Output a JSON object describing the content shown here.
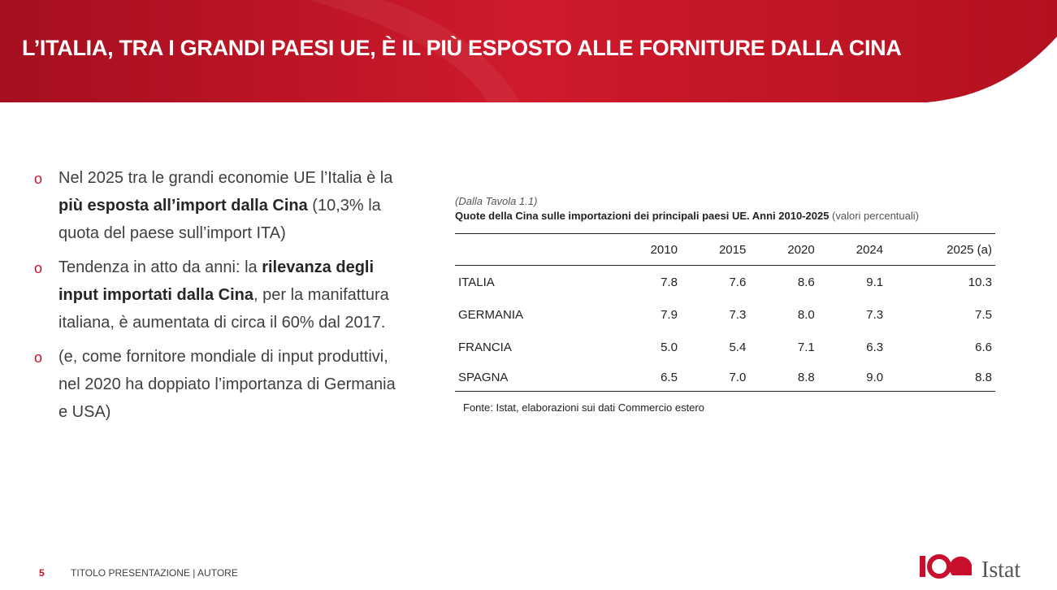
{
  "header": {
    "title": "L’ITALIA, TRA I GRANDI PAESI UE, È IL PIÙ ESPOSTO ALLE FORNITURE DALLA CINA"
  },
  "bullets": [
    [
      {
        "text": "Nel 2025 tra le grandi economie UE l’Italia è la ",
        "bold": false
      },
      {
        "text": "più esposta all’import dalla Cina",
        "bold": true
      },
      {
        "text": " (10,3% la quota del paese sull’import ITA)",
        "bold": false
      }
    ],
    [
      {
        "text": "Tendenza in atto da anni: la ",
        "bold": false
      },
      {
        "text": "rilevanza degli input importati dalla Cina",
        "bold": true
      },
      {
        "text": ", per la manifattura italiana, è aumentata di circa il 60% dal 2017.",
        "bold": false
      }
    ],
    [
      {
        "text": "(e, come fornitore mondiale di input produttivi, nel 2020 ha doppiato l’importanza di Germania e USA)",
        "bold": false
      }
    ]
  ],
  "table": {
    "source_ref": "(Dalla Tavola 1.1)",
    "title": "Quote della Cina sulle importazioni dei principali paesi UE. Anni 2010-2025",
    "unit": "(valori percentuali)",
    "columns": [
      "2010",
      "2015",
      "2020",
      "2024",
      "2025 (a)"
    ],
    "rows": [
      {
        "label": "ITALIA",
        "values": [
          "7.8",
          "7.6",
          "8.6",
          "9.1",
          "10.3"
        ]
      },
      {
        "label": "GERMANIA",
        "values": [
          "7.9",
          "7.3",
          "8.0",
          "7.3",
          "7.5"
        ]
      },
      {
        "label": "FRANCIA",
        "values": [
          "5.0",
          "5.4",
          "7.1",
          "6.3",
          "6.6"
        ]
      },
      {
        "label": "SPAGNA",
        "values": [
          "6.5",
          "7.0",
          "8.8",
          "9.0",
          "8.8"
        ]
      }
    ],
    "note": "Fonte: Istat, elaborazioni sui dati Commercio estero"
  },
  "footer": {
    "page": "5",
    "text": "TITOLO PRESENTAZIONE | AUTORE",
    "logo": "Istat"
  }
}
